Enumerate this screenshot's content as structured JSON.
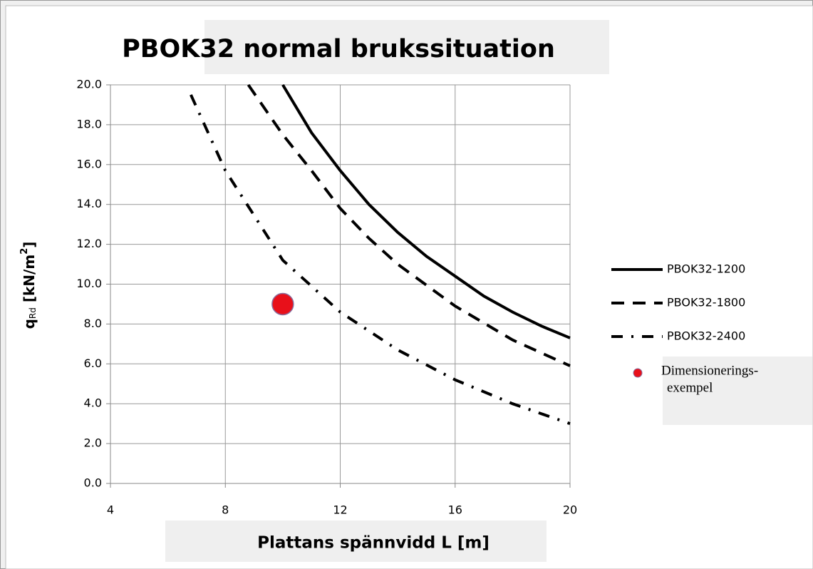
{
  "chart_data": {
    "type": "line",
    "title": "PBOK32 normal brukssituation",
    "xlabel": "Plattans spännvidd L [m]",
    "ylabel_parts": [
      "q",
      "Rd",
      " [kN/m",
      "2",
      "]"
    ],
    "xlim": [
      4,
      20
    ],
    "ylim": [
      0,
      20
    ],
    "xticks": [
      4,
      8,
      12,
      16,
      20
    ],
    "yticks": [
      {
        "value": 0,
        "label": "0.0"
      },
      {
        "value": 2,
        "label": "2.0"
      },
      {
        "value": 4,
        "label": "4.0"
      },
      {
        "value": 6,
        "label": "6.0"
      },
      {
        "value": 8,
        "label": "8.0"
      },
      {
        "value": 10,
        "label": "10.0"
      },
      {
        "value": 12,
        "label": "12.0"
      },
      {
        "value": 14,
        "label": "14.0"
      },
      {
        "value": 16,
        "label": "16.0"
      },
      {
        "value": 18,
        "label": "18.0"
      },
      {
        "value": 20,
        "label": "20.0"
      }
    ],
    "grid": true,
    "legend": "right",
    "series": [
      {
        "name": "PBOK32-1200",
        "color": "#000000",
        "dash": "solid",
        "x": [
          10,
          11,
          12,
          13,
          14,
          15,
          16,
          17,
          18,
          19,
          20
        ],
        "values": [
          20,
          17.6,
          15.7,
          14.0,
          12.6,
          11.4,
          10.4,
          9.4,
          8.6,
          7.9,
          7.3
        ]
      },
      {
        "name": "PBOK32-1800",
        "color": "#000000",
        "dash": "dash",
        "x": [
          8.8,
          10,
          11,
          12,
          13,
          14,
          16,
          18,
          20
        ],
        "values": [
          20,
          17.5,
          15.7,
          13.8,
          12.3,
          11.0,
          8.9,
          7.2,
          5.9
        ]
      },
      {
        "name": "PBOK32-2400",
        "color": "#000000",
        "dash": "dashdot",
        "x": [
          6.8,
          8,
          10,
          12,
          14,
          16,
          18,
          20
        ],
        "values": [
          19.5,
          15.7,
          11.2,
          8.6,
          6.7,
          5.2,
          4.0,
          3.0
        ]
      }
    ],
    "point": {
      "name": [
        "Dimensionerings-",
        "exempel"
      ],
      "x": 10,
      "y": 9.0,
      "color": "#e8101a"
    }
  }
}
